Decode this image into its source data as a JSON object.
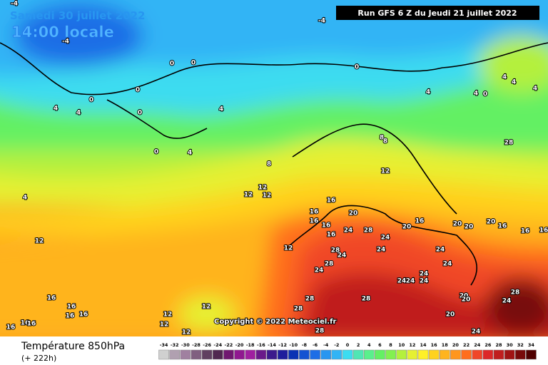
{
  "header": {
    "date": "Samedi 30 juillet 2022",
    "time": "14:00 locale",
    "run": "Run GFS 6 Z du Jeudi 21 juillet 2022"
  },
  "footer": {
    "title": "Température 850hPa",
    "lead": "(+ 222h)",
    "copyright": "Copyright © 2022 Meteociel.fr"
  },
  "scale": {
    "ticks": [
      -34,
      -32,
      -30,
      -28,
      -26,
      -24,
      -22,
      -20,
      -18,
      -16,
      -14,
      -12,
      -10,
      -8,
      -6,
      -4,
      -2,
      0,
      2,
      4,
      6,
      8,
      10,
      12,
      14,
      16,
      18,
      20,
      22,
      24,
      26,
      28,
      30,
      32,
      34
    ],
    "colors": [
      "#d0d0d0",
      "#b0a0b0",
      "#a080a0",
      "#806080",
      "#604060",
      "#502850",
      "#701870",
      "#901890",
      "#a020a0",
      "#6a1a8a",
      "#3c1a8c",
      "#1e1e9c",
      "#0a32b4",
      "#1452d2",
      "#1e6ee6",
      "#2896f0",
      "#32b4f5",
      "#3cdcf0",
      "#50e6b4",
      "#5af08c",
      "#64f064",
      "#82f050",
      "#b4f03c",
      "#e6f032",
      "#fff028",
      "#ffd21e",
      "#ffb41e",
      "#ff961e",
      "#ff6e1e",
      "#f04628",
      "#dc2828",
      "#c01e1e",
      "#a01414",
      "#780a0a",
      "#500000"
    ]
  },
  "contour_labels": [
    -4,
    -4,
    -4,
    0,
    0,
    0,
    0,
    0,
    0,
    0,
    0,
    4,
    4,
    4,
    4,
    4,
    4,
    4,
    4,
    4,
    4,
    8,
    8,
    8,
    12,
    12,
    12,
    12,
    12,
    12,
    12,
    12,
    12,
    12,
    16,
    16,
    16,
    16,
    16,
    16,
    16,
    16,
    16,
    16,
    16,
    16,
    16,
    16,
    16,
    16,
    20,
    20,
    20,
    20,
    20,
    20,
    20,
    20,
    24,
    24,
    24,
    24,
    24,
    24,
    24,
    24,
    24,
    24,
    24,
    24,
    24,
    28,
    28,
    28,
    28,
    28,
    28,
    28,
    28,
    28
  ]
}
